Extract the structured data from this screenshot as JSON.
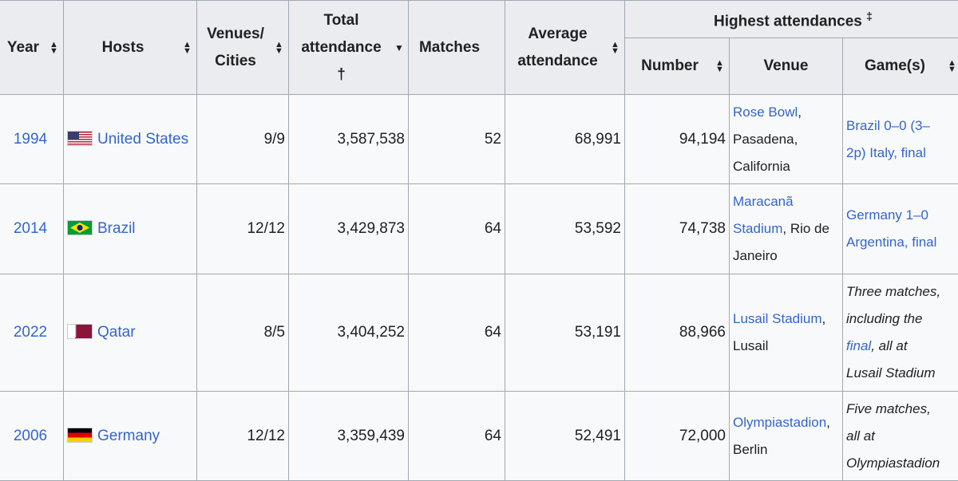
{
  "headers": {
    "year": "Year",
    "hosts": "Hosts",
    "venues_l1": "Venues/",
    "venues_l2": "Cities",
    "total_l1": "Total",
    "total_l2": "attendance",
    "total_mark": "†",
    "matches": "Matches",
    "avg_l1": "Average",
    "avg_l2": "attendance",
    "highest": "Highest attendances",
    "highest_mark": "‡",
    "number": "Number",
    "venue": "Venue",
    "games": "Game(s)"
  },
  "sort_icons": {
    "up": "▲",
    "down": "▼"
  },
  "rows": [
    {
      "year": "1994",
      "host": "United States",
      "flag": "us-flag-icon",
      "venues": "9/9",
      "total": "3,587,538",
      "matches": "52",
      "average": "68,991",
      "number": "94,194",
      "venue_link": "Rose Bowl",
      "venue_rest_1": ",",
      "venue_rest_2": "Pasadena,",
      "venue_rest_3": "California",
      "game_1": "Brazil 0–0 (3–",
      "game_2": "2p) Italy, final"
    },
    {
      "year": "2014",
      "host": "Brazil",
      "flag": "brazil-flag-icon",
      "venues": "12/12",
      "total": "3,429,873",
      "matches": "64",
      "average": "53,592",
      "number": "74,738",
      "venue_link_1": "Maracanã",
      "venue_link_2": "Stadium",
      "venue_rest_1": ", Rio de",
      "venue_rest_2": "Janeiro",
      "game_1": "Germany 1–0",
      "game_2": "Argentina, final"
    },
    {
      "year": "2022",
      "host": "Qatar",
      "flag": "qatar-flag-icon",
      "venues": "8/5",
      "total": "3,404,252",
      "matches": "64",
      "average": "53,191",
      "number": "88,966",
      "venue_link": "Lusail Stadium",
      "venue_rest_1": ",",
      "venue_rest_2": "Lusail",
      "game_1": "Three matches,",
      "game_2": "including the",
      "game_3_link": "final",
      "game_3_rest": ", all at",
      "game_4": "Lusail Stadium"
    },
    {
      "year": "2006",
      "host": "Germany",
      "flag": "germany-flag-icon",
      "venues": "12/12",
      "total": "3,359,439",
      "matches": "64",
      "average": "52,491",
      "number": "72,000",
      "venue_link": "Olympiastadion",
      "venue_rest_1": ",",
      "venue_rest_2": "Berlin",
      "game_1": "Five matches,",
      "game_2": "all at",
      "game_3": "Olympiastadion"
    }
  ]
}
